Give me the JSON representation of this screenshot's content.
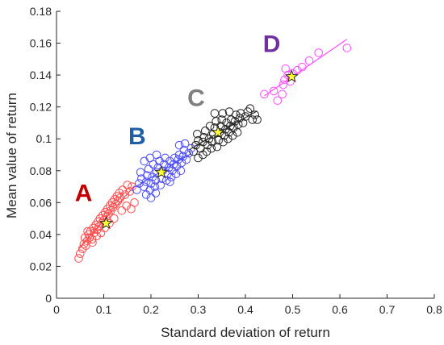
{
  "chart_data": {
    "type": "scatter",
    "title": "",
    "xlabel": "Standard deviation of return",
    "ylabel": "Mean value of return",
    "xlim": [
      0,
      0.8
    ],
    "ylim": [
      0,
      0.18
    ],
    "xticks": [
      "0",
      "0.1",
      "0.2",
      "0.3",
      "0.4",
      "0.5",
      "0.6",
      "0.7",
      "0.8"
    ],
    "yticks": [
      "0",
      "0.02",
      "0.04",
      "0.06",
      "0.08",
      "0.1",
      "0.12",
      "0.14",
      "0.16",
      "0.18"
    ],
    "grid": false,
    "legend": "none",
    "series": [
      {
        "label": "A",
        "color": "#ff4d4d",
        "label_color": "#c00000",
        "centroid": [
          0.105,
          0.047
        ],
        "points": [
          [
            0.047,
            0.025
          ],
          [
            0.05,
            0.028
          ],
          [
            0.055,
            0.031
          ],
          [
            0.058,
            0.034
          ],
          [
            0.062,
            0.033
          ],
          [
            0.065,
            0.036
          ],
          [
            0.07,
            0.038
          ],
          [
            0.068,
            0.04
          ],
          [
            0.072,
            0.042
          ],
          [
            0.075,
            0.037
          ],
          [
            0.078,
            0.044
          ],
          [
            0.08,
            0.041
          ],
          [
            0.083,
            0.046
          ],
          [
            0.086,
            0.043
          ],
          [
            0.088,
            0.048
          ],
          [
            0.09,
            0.045
          ],
          [
            0.092,
            0.05
          ],
          [
            0.095,
            0.047
          ],
          [
            0.098,
            0.052
          ],
          [
            0.1,
            0.049
          ],
          [
            0.103,
            0.054
          ],
          [
            0.105,
            0.051
          ],
          [
            0.108,
            0.056
          ],
          [
            0.11,
            0.053
          ],
          [
            0.113,
            0.058
          ],
          [
            0.115,
            0.055
          ],
          [
            0.118,
            0.06
          ],
          [
            0.12,
            0.057
          ],
          [
            0.123,
            0.062
          ],
          [
            0.125,
            0.059
          ],
          [
            0.128,
            0.064
          ],
          [
            0.13,
            0.061
          ],
          [
            0.133,
            0.066
          ],
          [
            0.135,
            0.063
          ],
          [
            0.14,
            0.068
          ],
          [
            0.145,
            0.065
          ],
          [
            0.15,
            0.071
          ],
          [
            0.155,
            0.067
          ],
          [
            0.16,
            0.07
          ],
          [
            0.165,
            0.06
          ],
          [
            0.158,
            0.056
          ],
          [
            0.06,
            0.038
          ],
          [
            0.066,
            0.042
          ],
          [
            0.076,
            0.035
          ],
          [
            0.085,
            0.039
          ],
          [
            0.094,
            0.041
          ],
          [
            0.102,
            0.044
          ],
          [
            0.112,
            0.047
          ],
          [
            0.122,
            0.05
          ],
          [
            0.138,
            0.055
          ],
          [
            0.148,
            0.058
          ]
        ]
      },
      {
        "label": "B",
        "color": "#4d4dff",
        "label_color": "#1f5fa8",
        "centroid": [
          0.222,
          0.079
        ],
        "points": [
          [
            0.17,
            0.068
          ],
          [
            0.175,
            0.072
          ],
          [
            0.18,
            0.075
          ],
          [
            0.178,
            0.079
          ],
          [
            0.185,
            0.07
          ],
          [
            0.19,
            0.073
          ],
          [
            0.192,
            0.077
          ],
          [
            0.195,
            0.081
          ],
          [
            0.198,
            0.068
          ],
          [
            0.2,
            0.072
          ],
          [
            0.203,
            0.076
          ],
          [
            0.205,
            0.084
          ],
          [
            0.208,
            0.07
          ],
          [
            0.21,
            0.074
          ],
          [
            0.212,
            0.079
          ],
          [
            0.215,
            0.082
          ],
          [
            0.218,
            0.086
          ],
          [
            0.22,
            0.071
          ],
          [
            0.223,
            0.075
          ],
          [
            0.225,
            0.08
          ],
          [
            0.228,
            0.084
          ],
          [
            0.23,
            0.088
          ],
          [
            0.233,
            0.074
          ],
          [
            0.235,
            0.078
          ],
          [
            0.238,
            0.082
          ],
          [
            0.24,
            0.086
          ],
          [
            0.243,
            0.076
          ],
          [
            0.245,
            0.08
          ],
          [
            0.248,
            0.084
          ],
          [
            0.25,
            0.088
          ],
          [
            0.253,
            0.078
          ],
          [
            0.255,
            0.083
          ],
          [
            0.258,
            0.087
          ],
          [
            0.26,
            0.09
          ],
          [
            0.263,
            0.08
          ],
          [
            0.265,
            0.085
          ],
          [
            0.268,
            0.089
          ],
          [
            0.27,
            0.093
          ],
          [
            0.275,
            0.087
          ],
          [
            0.28,
            0.091
          ],
          [
            0.285,
            0.094
          ],
          [
            0.272,
            0.097
          ],
          [
            0.26,
            0.096
          ],
          [
            0.19,
            0.065
          ],
          [
            0.2,
            0.063
          ],
          [
            0.21,
            0.066
          ],
          [
            0.186,
            0.086
          ],
          [
            0.198,
            0.088
          ],
          [
            0.212,
            0.09
          ],
          [
            0.24,
            0.073
          ]
        ]
      },
      {
        "label": "C",
        "color": "#262626",
        "label_color": "#7f7f7f",
        "centroid": [
          0.342,
          0.104
        ],
        "points": [
          [
            0.29,
            0.092
          ],
          [
            0.295,
            0.096
          ],
          [
            0.3,
            0.099
          ],
          [
            0.298,
            0.103
          ],
          [
            0.305,
            0.094
          ],
          [
            0.31,
            0.098
          ],
          [
            0.312,
            0.101
          ],
          [
            0.315,
            0.105
          ],
          [
            0.318,
            0.092
          ],
          [
            0.32,
            0.096
          ],
          [
            0.323,
            0.1
          ],
          [
            0.325,
            0.108
          ],
          [
            0.328,
            0.094
          ],
          [
            0.33,
            0.098
          ],
          [
            0.332,
            0.103
          ],
          [
            0.335,
            0.107
          ],
          [
            0.338,
            0.111
          ],
          [
            0.34,
            0.095
          ],
          [
            0.343,
            0.099
          ],
          [
            0.345,
            0.104
          ],
          [
            0.348,
            0.108
          ],
          [
            0.35,
            0.112
          ],
          [
            0.353,
            0.098
          ],
          [
            0.355,
            0.102
          ],
          [
            0.358,
            0.106
          ],
          [
            0.36,
            0.11
          ],
          [
            0.363,
            0.1
          ],
          [
            0.365,
            0.104
          ],
          [
            0.368,
            0.108
          ],
          [
            0.37,
            0.112
          ],
          [
            0.373,
            0.102
          ],
          [
            0.375,
            0.107
          ],
          [
            0.378,
            0.111
          ],
          [
            0.38,
            0.115
          ],
          [
            0.383,
            0.104
          ],
          [
            0.385,
            0.109
          ],
          [
            0.388,
            0.113
          ],
          [
            0.39,
            0.116
          ],
          [
            0.395,
            0.11
          ],
          [
            0.4,
            0.114
          ],
          [
            0.405,
            0.117
          ],
          [
            0.41,
            0.119
          ],
          [
            0.415,
            0.112
          ],
          [
            0.42,
            0.115
          ],
          [
            0.425,
            0.112
          ],
          [
            0.3,
            0.088
          ],
          [
            0.31,
            0.09
          ],
          [
            0.335,
            0.116
          ],
          [
            0.352,
            0.116
          ],
          [
            0.366,
            0.117
          ]
        ]
      },
      {
        "label": "D",
        "color": "#ff4dff",
        "label_color": "#7030a0",
        "centroid": [
          0.498,
          0.139
        ],
        "points": [
          [
            0.44,
            0.128
          ],
          [
            0.46,
            0.13
          ],
          [
            0.468,
            0.124
          ],
          [
            0.478,
            0.128
          ],
          [
            0.48,
            0.134
          ],
          [
            0.483,
            0.137
          ],
          [
            0.485,
            0.144
          ],
          [
            0.49,
            0.14
          ],
          [
            0.495,
            0.136
          ],
          [
            0.5,
            0.141
          ],
          [
            0.51,
            0.143
          ],
          [
            0.52,
            0.145
          ],
          [
            0.535,
            0.149
          ],
          [
            0.555,
            0.154
          ],
          [
            0.615,
            0.157
          ]
        ]
      }
    ]
  }
}
